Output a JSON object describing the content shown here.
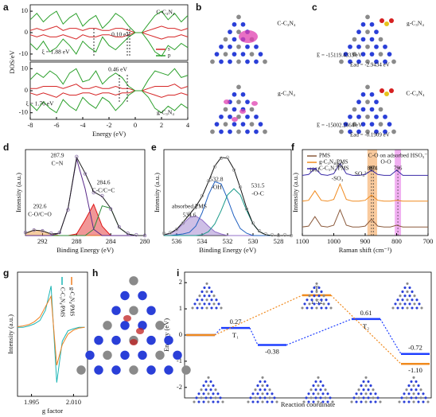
{
  "chart_data": [
    {
      "panel": "a",
      "type": "line",
      "ylabel": "DOS/eV",
      "xlim": [
        -8,
        4
      ],
      "ylim": [
        -13,
        13
      ],
      "yticks": [
        -10,
        0,
        10
      ],
      "x": [
        -8,
        -7.5,
        -7,
        -6.5,
        -6,
        -5.5,
        -5,
        -4.5,
        -4,
        -3.5,
        -3,
        -2.5,
        -2,
        -1.5,
        -1,
        -0.5,
        0,
        0.5,
        1,
        1.5,
        2,
        2.5,
        3,
        3.5,
        4
      ],
      "series": [
        {
          "name": "s",
          "color": "#d62728",
          "values": [
            1,
            2,
            1,
            2,
            3,
            1,
            2,
            2,
            1,
            2,
            2,
            1,
            1,
            2,
            2,
            1,
            0,
            0,
            1,
            2,
            3,
            2,
            2,
            1,
            2
          ]
        },
        {
          "name": "p",
          "color": "#2ca02c",
          "values": [
            6,
            9,
            5,
            8,
            10,
            4,
            7,
            9,
            3,
            6,
            8,
            2,
            5,
            9,
            7,
            3,
            0,
            0,
            4,
            8,
            10,
            6,
            9,
            5,
            8
          ]
        },
        {
          "color": "#d62728",
          "values": [
            -1,
            -2,
            -1,
            -2,
            -2,
            -1,
            -2,
            -3,
            -1,
            -2,
            -2,
            -1,
            -1,
            -2,
            -2,
            -1,
            0,
            0,
            -1,
            -2,
            -3,
            -2,
            -2,
            -1,
            -2
          ]
        },
        {
          "color": "#2ca02c",
          "values": [
            -5,
            -8,
            -4,
            -9,
            -7,
            -3,
            -6,
            -10,
            -4,
            -7,
            -9,
            -2,
            -6,
            -8,
            -5,
            -2,
            0,
            0,
            -4,
            -9,
            -11,
            -6,
            -8,
            -5,
            -7
          ]
        }
      ],
      "annotations": [
        "C-C₃N₄",
        "ξ = 1.88 eV",
        "0.10 eV"
      ]
    },
    {
      "type": "line",
      "xlabel": "Energy (eV)",
      "xlim": [
        -8,
        4
      ],
      "xticks": [
        -8,
        -6,
        -4,
        -2,
        0,
        2,
        4
      ],
      "ylim": [
        -13,
        13
      ],
      "yticks": [
        -10,
        0,
        10
      ],
      "x": [
        -8,
        -7.5,
        -7,
        -6.5,
        -6,
        -5.5,
        -5,
        -4.5,
        -4,
        -3.5,
        -3,
        -2.5,
        -2,
        -1.5,
        -1,
        -0.5,
        0,
        0.5,
        1,
        1.5,
        2,
        2.5,
        3,
        3.5,
        4
      ],
      "series": [
        {
          "color": "#d62728",
          "values": [
            1,
            1,
            2,
            2,
            2,
            1,
            2,
            3,
            1,
            1,
            2,
            1,
            1,
            2,
            1,
            1,
            0,
            0,
            1,
            2,
            2,
            2,
            3,
            1,
            2
          ]
        },
        {
          "color": "#2ca02c",
          "values": [
            5,
            8,
            6,
            9,
            7,
            3,
            8,
            10,
            4,
            5,
            9,
            3,
            6,
            8,
            6,
            2,
            0,
            0,
            5,
            9,
            8,
            7,
            10,
            6,
            7
          ]
        },
        {
          "color": "#d62728",
          "values": [
            -1,
            -2,
            -1,
            -2,
            -3,
            -1,
            -2,
            -2,
            -1,
            -1,
            -2,
            -1,
            -1,
            -2,
            -1,
            -1,
            0,
            0,
            -1,
            -2,
            -3,
            -2,
            -2,
            -1,
            -2
          ]
        },
        {
          "color": "#2ca02c",
          "values": [
            -6,
            -9,
            -5,
            -8,
            -10,
            -4,
            -7,
            -9,
            -3,
            -6,
            -8,
            -3,
            -5,
            -9,
            -6,
            -2,
            0,
            0,
            -3,
            -8,
            -10,
            -7,
            -9,
            -6,
            -8
          ]
        }
      ],
      "annotations": [
        "0.46 eV",
        "ξ = 1.76 eV",
        "g-C₃N₄"
      ]
    },
    {
      "panel": "d",
      "type": "line",
      "xlabel": "Binding Energy (eV)",
      "ylabel": "Intensity (a.u.)",
      "xlim": [
        294,
        280
      ],
      "xticks": [
        292,
        288,
        284,
        280
      ],
      "ylim": [
        0,
        110
      ],
      "x": [
        294,
        293,
        292,
        291,
        290,
        289,
        288,
        287,
        286,
        285,
        284,
        283,
        282,
        281,
        280
      ],
      "series": [
        {
          "color": "#e8902a",
          "fill": true,
          "values": [
            3,
            7,
            6,
            2,
            0,
            0,
            0,
            0,
            0,
            0,
            0,
            0,
            0,
            0,
            0
          ]
        },
        {
          "color": "#e01818",
          "fill": true,
          "values": [
            0,
            0,
            0,
            0,
            0,
            0,
            2,
            20,
            40,
            12,
            0,
            0,
            0,
            0,
            0
          ]
        },
        {
          "color": "#2e8b3a",
          "values": [
            0,
            0,
            0,
            0,
            0,
            0,
            0,
            0,
            8,
            38,
            35,
            10,
            2,
            0,
            0
          ]
        },
        {
          "color": "#5a2a8a",
          "values": [
            0,
            0,
            0,
            0,
            3,
            35,
            98,
            60,
            8,
            0,
            0,
            0,
            0,
            0,
            0
          ]
        },
        {
          "color": "#222222",
          "values": [
            3,
            7,
            6,
            2,
            3,
            35,
            100,
            80,
            56,
            50,
            35,
            10,
            2,
            0,
            0
          ]
        },
        {
          "color": "#8a6fa8",
          "style": "dots",
          "values": [
            4,
            7,
            6,
            3,
            4,
            33,
            101,
            79,
            55,
            51,
            34,
            11,
            3,
            1,
            0
          ]
        }
      ],
      "annotations": [
        "287.9",
        "C=N",
        "284.6",
        "C-C/C=C",
        "292.6",
        "C-O/C=O"
      ]
    },
    {
      "panel": "e",
      "type": "line",
      "xlabel": "Binding Energy (eV)",
      "ylabel": "Intensity (a.u.)",
      "xlim": [
        537,
        527
      ],
      "xticks": [
        536,
        534,
        532,
        530,
        528
      ],
      "ylim": [
        0,
        110
      ],
      "x": [
        537,
        536.5,
        536,
        535.5,
        535,
        534.5,
        534,
        533.5,
        533,
        532.5,
        532,
        531.5,
        531,
        530.5,
        530,
        529.5,
        529,
        528.5,
        528,
        527.5,
        527
      ],
      "series": [
        {
          "color": "#9370c8",
          "fill": true,
          "values": [
            1,
            3,
            7,
            15,
            23,
            25,
            20,
            12,
            5,
            2,
            0,
            0,
            0,
            0,
            0,
            0,
            0,
            0,
            0,
            0,
            0
          ]
        },
        {
          "color": "#2060c0",
          "values": [
            0,
            0,
            1,
            2,
            4,
            12,
            29,
            52,
            69,
            66,
            47,
            25,
            9,
            3,
            0,
            0,
            0,
            0,
            0,
            0,
            0
          ]
        },
        {
          "color": "#1a9a8a",
          "values": [
            0,
            0,
            0,
            0,
            0,
            0,
            1,
            5,
            15,
            32,
            52,
            60,
            52,
            32,
            15,
            5,
            1,
            0,
            0,
            0,
            0
          ]
        },
        {
          "color": "#111111",
          "values": [
            1,
            3,
            8,
            17,
            27,
            37,
            50,
            69,
            89,
            100,
            99,
            85,
            61,
            35,
            15,
            5,
            1,
            0,
            0,
            0,
            0
          ]
        },
        {
          "color": "#999999",
          "style": "dots",
          "values": [
            3,
            4,
            8,
            16,
            28,
            36,
            51,
            70,
            88,
            99,
            100,
            84,
            62,
            34,
            16,
            6,
            2,
            1,
            0,
            1,
            0
          ]
        }
      ],
      "annotations": [
        "532.8",
        "-OH",
        "531.5",
        "-O-C",
        "absorbed PMS",
        "534.6"
      ]
    },
    {
      "panel": "f",
      "type": "line",
      "xlabel": "Raman shift (cm⁻¹)",
      "ylabel": "Intensity (a.u.)",
      "xlim": [
        1100,
        700
      ],
      "xticks": [
        1100,
        1000,
        900,
        800,
        700
      ],
      "ylim": [
        0,
        100
      ],
      "highlights": [
        {
          "xlim": [
            893,
            862
          ],
          "color": "#f5a65b"
        },
        {
          "xlim": [
            806,
            786
          ],
          "color": "#e879e8"
        }
      ],
      "x": [
        1100,
        1080,
        1060,
        1040,
        1020,
        1000,
        980,
        960,
        940,
        920,
        900,
        880,
        860,
        840,
        820,
        800,
        780,
        760,
        740,
        720,
        700
      ],
      "series": [
        {
          "name": "PMS",
          "color": "#8b5a3c",
          "values": [
            10,
            11,
            22,
            11,
            10,
            12,
            30,
            12,
            10,
            10,
            11,
            19,
            11,
            10,
            10,
            12,
            10,
            10,
            10,
            10,
            10
          ]
        },
        {
          "name": "g-C₃N₄/PMS",
          "color": "#f08a1e",
          "values": [
            40,
            41,
            52,
            41,
            40,
            42,
            60,
            42,
            40,
            40,
            41,
            47,
            41,
            40,
            40,
            41,
            40,
            40,
            40,
            40,
            40
          ]
        },
        {
          "name": "C-C₃N₄/PMS",
          "color": "#3a2aa8",
          "values": [
            70,
            71,
            78,
            71,
            70,
            72,
            84,
            72,
            70,
            70,
            71,
            76,
            71,
            70,
            70,
            76,
            70,
            70,
            70,
            70,
            70
          ]
        }
      ],
      "peaks": [
        {
          "x": 1061,
          "label": "1061"
        },
        {
          "x": 982,
          "label": "982"
        },
        {
          "x": 880,
          "label": "880",
          "dashed": true
        },
        {
          "x": 874,
          "label": "874",
          "dashed": true
        },
        {
          "x": 796,
          "label": "796",
          "dashed": true
        }
      ],
      "annotations": [
        "-SO₃",
        "SO₄²⁻",
        "O-O",
        "C-O on adsorbed HSO₅⁻"
      ]
    },
    {
      "panel": "g",
      "type": "line",
      "xlabel": "g factor",
      "ylabel": "Intensity (a.u.)",
      "xlim": [
        1.99,
        2.015
      ],
      "xticks": [
        1.995,
        {
          "value": 2.01,
          "label": "2.010"
        }
      ],
      "ylim": [
        -100,
        80
      ],
      "x": [
        1.99,
        1.992,
        1.994,
        1.996,
        1.998,
        2.0,
        2.002,
        2.004,
        2.006,
        2.008,
        2.01,
        2.012,
        2.014
      ],
      "series": [
        {
          "name": "C-C₃N₄/PMS",
          "color": "#1ab5b5",
          "values": [
            0,
            0,
            2,
            5,
            10,
            25,
            60,
            -80,
            -20,
            -5,
            -2,
            0,
            0
          ]
        },
        {
          "name": "g-C₃N₄/PMS",
          "color": "#f07f20",
          "values": [
            1,
            2,
            4,
            8,
            15,
            30,
            45,
            -55,
            -25,
            -10,
            -4,
            -1,
            0
          ]
        }
      ]
    },
    {
      "panel": "i",
      "type": "energy",
      "xlabel": "Reaction coordinate",
      "ylabel": "Energy (eV)",
      "ylim": [
        -2.4,
        2.4
      ],
      "yticks": [
        -2,
        -1,
        0,
        1,
        2
      ],
      "series": [
        {
          "color": "#1f3fff",
          "values": [
            0,
            0.27,
            -0.38,
            null,
            0.61,
            -0.72
          ],
          "value_labels": [
            null,
            "0.27",
            "-0.38",
            null,
            "0.61",
            "-0.72"
          ],
          "state_labels": [
            null,
            "T₁",
            null,
            null,
            "T₂",
            null
          ]
        },
        {
          "color": "#f08a1e",
          "values": [
            0,
            null,
            null,
            1.52,
            null,
            -1.1
          ],
          "value_labels": [
            null,
            null,
            null,
            "1.52",
            null,
            "-1.10"
          ],
          "state_labels": [
            null,
            null,
            null,
            "T",
            null,
            null
          ]
        }
      ]
    }
  ],
  "images": [
    {
      "panel": "b",
      "labels": [
        "C-C₃N₄",
        "g-C₃N₄"
      ]
    },
    {
      "panel": "c",
      "labels": [
        "g-C₃N₄",
        "E = -15119.4333 eV",
        "Ead = -2.9434 eV",
        "C-C₃N₄",
        "E = -15002.2664 eV",
        "Ead = -0.1909 eV"
      ]
    },
    {
      "panel": "h"
    }
  ]
}
